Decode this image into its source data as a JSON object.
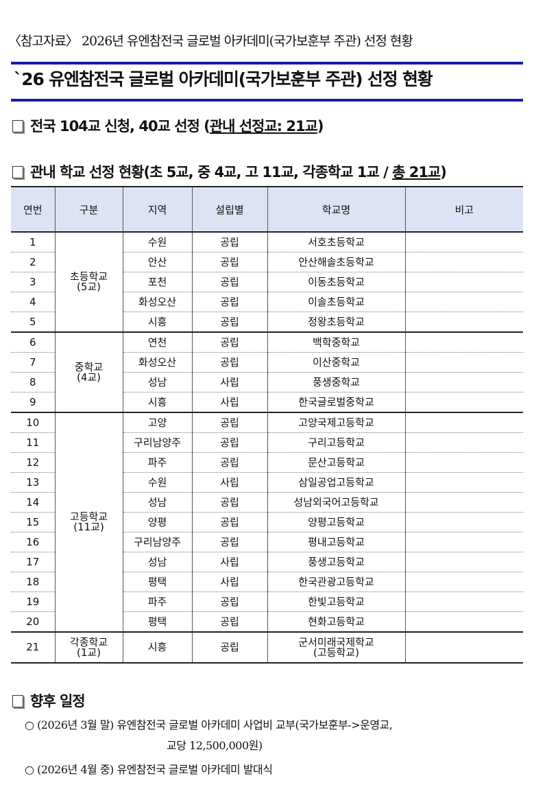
{
  "reference_title": "〈참고자료〉 2026년 유엔참전국 글로벌 아카데미(국가보훈부 주관) 선정 현황",
  "main_title": "`26 유엔참전국 글로벌 아카데미(국가보훈부 주관) 선정 현황",
  "section1": {
    "text": "전국 104교 신청, 40교 선정 (",
    "underlined": "관내 선정교: 21교",
    "close": ")"
  },
  "section2": {
    "text": "관내 학교 선정 현황(초 5교, 중 4교, 고 11교, 각종학교 1교 / ",
    "underlined": "총 21교",
    "close": ")"
  },
  "table": {
    "headers": [
      "연번",
      "구분",
      "지역",
      "설립별",
      "학교명",
      "비고"
    ],
    "groups": [
      {
        "label": "초등학교",
        "count": "(5교)",
        "rows": [
          [
            "1",
            "수원",
            "공립",
            "서호초등학교"
          ],
          [
            "2",
            "안산",
            "공립",
            "안산해솔초등학교"
          ],
          [
            "3",
            "포천",
            "공립",
            "이동초등학교"
          ],
          [
            "4",
            "화성오산",
            "공립",
            "이솔초등학교"
          ],
          [
            "5",
            "시흥",
            "공립",
            "정왕초등학교"
          ]
        ]
      },
      {
        "label": "중학교",
        "count": "(4교)",
        "rows": [
          [
            "6",
            "연천",
            "공립",
            "백학중학교"
          ],
          [
            "7",
            "화성오산",
            "공립",
            "이산중학교"
          ],
          [
            "8",
            "성남",
            "사립",
            "풍생중학교"
          ],
          [
            "9",
            "시흥",
            "사립",
            "한국글로벌중학교"
          ]
        ]
      },
      {
        "label": "고등학교",
        "count": "(11교)",
        "rows": [
          [
            "10",
            "고양",
            "공립",
            "고양국제고등학교"
          ],
          [
            "11",
            "구리남양주",
            "공립",
            "구리고등학교"
          ],
          [
            "12",
            "파주",
            "공립",
            "문산고등학교"
          ],
          [
            "13",
            "수원",
            "사립",
            "삼일공업고등학교"
          ],
          [
            "14",
            "성남",
            "공립",
            "성남외국어고등학교"
          ],
          [
            "15",
            "양평",
            "공립",
            "양평고등학교"
          ],
          [
            "16",
            "구리남양주",
            "공립",
            "평내고등학교"
          ],
          [
            "17",
            "성남",
            "사립",
            "풍생고등학교"
          ],
          [
            "18",
            "평택",
            "사립",
            "한국관광고등학교"
          ],
          [
            "19",
            "파주",
            "공립",
            "한빛고등학교"
          ],
          [
            "20",
            "평택",
            "공립",
            "현화고등학교"
          ]
        ]
      },
      {
        "label": "각종학교",
        "count": "(1교)",
        "rows": [
          [
            "21",
            "시흥",
            "공립",
            "군서미래국제학교",
            "(고등학교)"
          ]
        ]
      }
    ]
  },
  "section3": {
    "text": "향후 일정"
  },
  "schedule": [
    {
      "bullet": "○",
      "when": "(2026년 3월 말)",
      "text": "유엔참전국 글로벌 아카데미 사업비 교부(국가보훈부->운영교,",
      "text2": "교당 12,500,000원)"
    },
    {
      "bullet": "○",
      "when": "(2026년 4월 중)",
      "text": "유엔참전국 글로벌 아카데미 발대식"
    }
  ],
  "colors": {
    "accent": "#1a1aa8",
    "header_bg": "#dde3f4"
  }
}
